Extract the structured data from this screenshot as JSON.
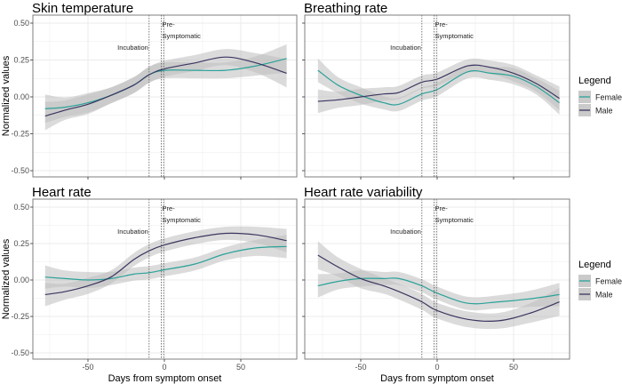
{
  "figure": {
    "ylabel": "Normalized values",
    "xlabel": "Days from symptom onset",
    "legend": {
      "title": "Legend",
      "items": [
        "Female",
        "Male"
      ]
    },
    "colors": {
      "Female": "#2aa198",
      "Male": "#3b3660",
      "ribbon": "#bdbdbd",
      "grid": "#ebebeb",
      "border": "#7f7f7f",
      "tick_text": "#4d4d4d"
    },
    "annotations": [
      {
        "label": "Incubation",
        "x": -10
      },
      {
        "label": "Pre-",
        "label2": "Symptomatic",
        "x": -2
      },
      {
        "label": "",
        "x": -0.5
      }
    ]
  },
  "chart_data": [
    {
      "type": "line",
      "title": "Skin temperature",
      "xlabel": "",
      "ylabel": "Normalized values",
      "xlim": [
        -86,
        86
      ],
      "ylim": [
        -0.55,
        0.55
      ],
      "xticks": [
        -50,
        0,
        50
      ],
      "yticks": [
        -0.5,
        -0.25,
        0,
        0.25,
        0.5
      ],
      "ytick_labels": [
        "-0.50",
        "-0.25",
        "0.00",
        "0.25",
        "0.50"
      ],
      "x": [
        -78,
        -65,
        -50,
        -35,
        -20,
        -10,
        0,
        20,
        40,
        60,
        80
      ],
      "series": [
        {
          "name": "Female",
          "values": [
            -0.08,
            -0.07,
            -0.04,
            0.01,
            0.08,
            0.15,
            0.18,
            0.18,
            0.18,
            0.21,
            0.26
          ],
          "ci": 0.06
        },
        {
          "name": "Male",
          "values": [
            -0.13,
            -0.09,
            -0.05,
            0.01,
            0.08,
            0.15,
            0.19,
            0.23,
            0.27,
            0.23,
            0.16
          ],
          "ci": 0.06
        }
      ],
      "legend": "right"
    },
    {
      "type": "line",
      "title": "Breathing rate",
      "xlabel": "",
      "ylabel": "",
      "xlim": [
        -86,
        86
      ],
      "ylim": [
        -0.55,
        0.55
      ],
      "xticks": [
        -50,
        0,
        50
      ],
      "yticks": [
        -0.5,
        -0.25,
        0,
        0.25,
        0.5
      ],
      "x": [
        -78,
        -65,
        -50,
        -35,
        -25,
        -10,
        0,
        20,
        35,
        50,
        65,
        80
      ],
      "series": [
        {
          "name": "Female",
          "values": [
            0.18,
            0.08,
            0.01,
            -0.04,
            -0.05,
            0.02,
            0.05,
            0.17,
            0.16,
            0.14,
            0.07,
            -0.04
          ],
          "ci": 0.05
        },
        {
          "name": "Male",
          "values": [
            -0.03,
            -0.02,
            0.0,
            0.02,
            0.03,
            0.1,
            0.12,
            0.21,
            0.2,
            0.16,
            0.09,
            -0.01
          ],
          "ci": 0.05
        }
      ],
      "legend": "right"
    },
    {
      "type": "line",
      "title": "Heart rate",
      "xlabel": "Days from symptom onset",
      "ylabel": "Normalized values",
      "xlim": [
        -86,
        86
      ],
      "ylim": [
        -0.55,
        0.55
      ],
      "xticks": [
        -50,
        0,
        50
      ],
      "yticks": [
        -0.5,
        -0.25,
        0,
        0.25,
        0.5
      ],
      "ytick_labels": [
        "-0.50",
        "-0.25",
        "0.00",
        "0.25",
        "0.50"
      ],
      "x": [
        -78,
        -65,
        -50,
        -35,
        -20,
        -10,
        0,
        20,
        40,
        60,
        80
      ],
      "series": [
        {
          "name": "Female",
          "values": [
            0.02,
            0.01,
            0.0,
            0.01,
            0.04,
            0.05,
            0.07,
            0.11,
            0.18,
            0.22,
            0.23
          ],
          "ci": 0.05
        },
        {
          "name": "Male",
          "values": [
            -0.1,
            -0.08,
            -0.04,
            0.02,
            0.14,
            0.2,
            0.24,
            0.29,
            0.32,
            0.31,
            0.27
          ],
          "ci": 0.05
        }
      ],
      "legend": "right"
    },
    {
      "type": "line",
      "title": "Heart rate variability",
      "xlabel": "Days from symptom onset",
      "ylabel": "",
      "xlim": [
        -86,
        86
      ],
      "ylim": [
        -0.55,
        0.55
      ],
      "xticks": [
        -50,
        0,
        50
      ],
      "xtick_labels": [
        "-50",
        "0",
        "50"
      ],
      "yticks": [
        -0.5,
        -0.25,
        0,
        0.25,
        0.5
      ],
      "x": [
        -78,
        -65,
        -50,
        -35,
        -25,
        -10,
        0,
        20,
        40,
        60,
        80
      ],
      "series": [
        {
          "name": "Female",
          "values": [
            -0.04,
            -0.01,
            0.01,
            0.01,
            0.01,
            -0.04,
            -0.09,
            -0.16,
            -0.15,
            -0.13,
            -0.1
          ],
          "ci": 0.05
        },
        {
          "name": "Male",
          "values": [
            0.17,
            0.09,
            0.01,
            -0.04,
            -0.08,
            -0.15,
            -0.21,
            -0.27,
            -0.28,
            -0.23,
            -0.15
          ],
          "ci": 0.06
        }
      ],
      "legend": "right"
    }
  ]
}
